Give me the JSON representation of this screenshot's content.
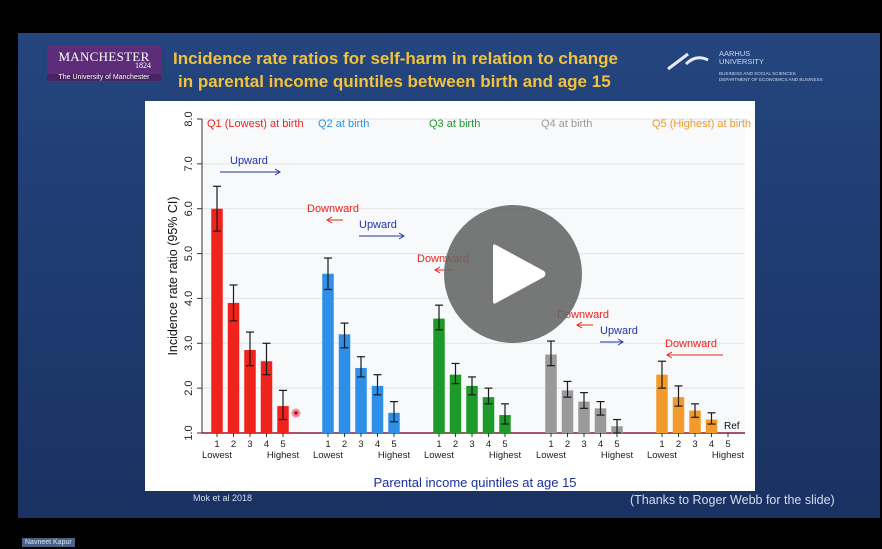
{
  "slide": {
    "title_line1": "Incidence rate ratios for self-harm in relation to change",
    "title_line2": "in parental income quintiles between birth and age 15",
    "logo_left": {
      "name": "MANCHESTER",
      "year": "1824",
      "subtitle": "The University of Manchester"
    },
    "logo_right": {
      "name_line1": "AARHUS",
      "name_line2": "UNIVERSITY",
      "dept_line1": "BUSINESS AND SOCIAL SCIENCES",
      "dept_line2": "DEPARTMENT OF ECONOMICS AND BUSINESS"
    },
    "citation": "Mok et al 2018",
    "thanks": "(Thanks to Roger Webb for the slide)"
  },
  "video": {
    "play_icon": "play-icon",
    "presenter": "Navneet Kapur"
  },
  "colors": {
    "q1": "#f0221c",
    "q2": "#2f8fe8",
    "q3": "#1e9a2a",
    "q4": "#9a9a9a",
    "q5": "#f39a2c",
    "title": "#f2c23a",
    "ref_line": "#8b1a3a",
    "arrow": "#2233aa"
  },
  "chart_data": {
    "type": "bar",
    "ylabel": "Incidence rate ratio (95% CI)",
    "xlabel": "Parental income quintiles at age 15",
    "ylim": [
      1.0,
      8.0
    ],
    "yticks": [
      "1.0",
      "2.0",
      "3.0",
      "4.0",
      "5.0",
      "6.0",
      "7.0",
      "8.0"
    ],
    "grid": true,
    "ref_label": "Ref",
    "groups": [
      {
        "name": "Q1 (Lowest) at birth",
        "color": "#f0221c",
        "categories": [
          "1",
          "2",
          "3",
          "4",
          "5"
        ],
        "values": [
          6.0,
          3.9,
          2.85,
          2.6,
          1.6
        ],
        "ci": [
          [
            5.5,
            6.5
          ],
          [
            3.5,
            4.3
          ],
          [
            2.5,
            3.25
          ],
          [
            2.3,
            3.0
          ],
          [
            1.3,
            1.95
          ]
        ],
        "end_labels": [
          "Lowest",
          "Highest"
        ]
      },
      {
        "name": "Q2 at birth",
        "color": "#2f8fe8",
        "categories": [
          "1",
          "2",
          "3",
          "4",
          "5"
        ],
        "values": [
          4.55,
          3.2,
          2.45,
          2.05,
          1.45
        ],
        "ci": [
          [
            4.2,
            4.9
          ],
          [
            2.9,
            3.45
          ],
          [
            2.25,
            2.7
          ],
          [
            1.85,
            2.3
          ],
          [
            1.25,
            1.7
          ]
        ],
        "end_labels": [
          "Lowest",
          "Highest"
        ]
      },
      {
        "name": "Q3 at birth",
        "color": "#1e9a2a",
        "categories": [
          "1",
          "2",
          "3",
          "4",
          "5"
        ],
        "values": [
          3.55,
          2.3,
          2.05,
          1.8,
          1.4
        ],
        "ci": [
          [
            3.3,
            3.85
          ],
          [
            2.1,
            2.55
          ],
          [
            1.85,
            2.25
          ],
          [
            1.65,
            2.0
          ],
          [
            1.2,
            1.65
          ]
        ],
        "end_labels": [
          "Lowest",
          "Highest"
        ]
      },
      {
        "name": "Q4 at birth",
        "color": "#9a9a9a",
        "categories": [
          "1",
          "2",
          "3",
          "4",
          "5"
        ],
        "values": [
          2.75,
          1.95,
          1.7,
          1.55,
          1.15
        ],
        "ci": [
          [
            2.5,
            3.05
          ],
          [
            1.8,
            2.15
          ],
          [
            1.55,
            1.9
          ],
          [
            1.4,
            1.7
          ],
          [
            1.0,
            1.3
          ]
        ],
        "end_labels": [
          "Lowest",
          "Highest"
        ]
      },
      {
        "name": "Q5 (Highest) at birth",
        "color": "#f39a2c",
        "categories": [
          "1",
          "2",
          "3",
          "4",
          "5"
        ],
        "values": [
          2.3,
          1.8,
          1.5,
          1.3,
          1.0
        ],
        "ci": [
          [
            2.0,
            2.6
          ],
          [
            1.6,
            2.05
          ],
          [
            1.35,
            1.65
          ],
          [
            1.2,
            1.45
          ],
          null
        ],
        "end_labels": [
          "Lowest",
          "Highest"
        ]
      }
    ],
    "annotations": [
      {
        "text": "Upward",
        "direction": "right",
        "group": 0
      },
      {
        "text": "Downward",
        "direction": "left",
        "group": 1
      },
      {
        "text": "Upward",
        "direction": "right",
        "group": 1
      },
      {
        "text": "Downward",
        "direction": "left",
        "group": 2
      },
      {
        "text": "Downward",
        "direction": "left",
        "group": 3
      },
      {
        "text": "Upward",
        "direction": "right",
        "group": 3
      },
      {
        "text": "Downward",
        "direction": "left",
        "group": 4
      }
    ]
  }
}
